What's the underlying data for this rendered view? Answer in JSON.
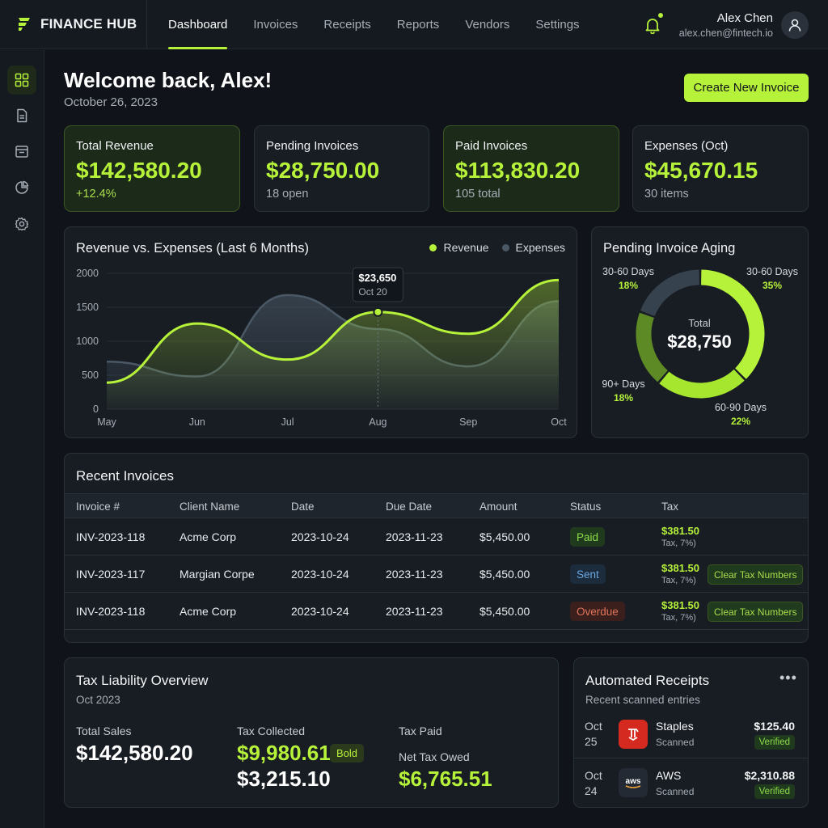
{
  "brand": {
    "name": "FINANCE HUB"
  },
  "nav": {
    "items": [
      "Dashboard",
      "Invoices",
      "Receipts",
      "Reports",
      "Vendors",
      "Settings"
    ],
    "active": "Dashboard"
  },
  "user": {
    "name": "Alex Chen",
    "email": "alex.chen@fintech.io"
  },
  "header": {
    "welcome": "Welcome back, Alex!",
    "date": "October 26, 2023",
    "create_button": "Create New Invoice"
  },
  "stats": [
    {
      "label": "Total Revenue",
      "value": "$142,580.20",
      "sub": "+12.4%"
    },
    {
      "label": "Pending Invoices",
      "value": "$28,750.00",
      "sub": "18 open"
    },
    {
      "label": "Paid Invoices",
      "value": "$113,830.20",
      "sub": "105 total"
    },
    {
      "label": "Expenses (Oct)",
      "value": "$45,670.15",
      "sub": "30 items"
    }
  ],
  "chart_data": [
    {
      "type": "area",
      "title": "Revenue vs. Expenses (Last 6 Months)",
      "categories": [
        "May",
        "Jun",
        "Jul",
        "Aug",
        "Sep",
        "Oct"
      ],
      "ylim": [
        0,
        2000
      ],
      "yticks": [
        "2000",
        "1500",
        "1000",
        "500",
        "0"
      ],
      "series": [
        {
          "name": "Revenue",
          "values": [
            390,
            1260,
            730,
            1430,
            1110,
            1900
          ]
        },
        {
          "name": "Expenses",
          "values": [
            700,
            480,
            1680,
            1180,
            630,
            1590
          ]
        }
      ],
      "tooltip": {
        "value": "$23,650",
        "date": "Oct 20"
      },
      "legend": "top-right",
      "colors": {
        "Revenue": "#b7f23a",
        "Expenses": "#4a5866"
      }
    },
    {
      "type": "pie",
      "title": "Pending Invoice Aging",
      "center_label": "Total",
      "center_value": "$28,750",
      "slices": [
        {
          "label": "30-60 Days",
          "value": 35
        },
        {
          "label": "60-90 Days",
          "value": 22
        },
        {
          "label": "90+ Days",
          "value": 18
        },
        {
          "label": "30-60 Days",
          "value": 18
        }
      ],
      "colors": [
        "#b7f23a",
        "#a6e62e",
        "#5d8a24",
        "#36424d"
      ]
    }
  ],
  "invoices": {
    "title": "Recent Invoices",
    "columns": [
      "Invoice #",
      "Client Name",
      "Date",
      "Due Date",
      "Amount",
      "Status",
      "Tax"
    ],
    "rows": [
      {
        "invoice": "INV-2023-118",
        "client": "Acme Corp",
        "date": "2023-10-24",
        "due": "2023-11-23",
        "amount": "$5,450.00",
        "status": "Paid",
        "tax": "$381.50",
        "tax_note": "Tax, 7%)",
        "action": ""
      },
      {
        "invoice": "INV-2023-117",
        "client": "Margian Corpe",
        "date": "2023-10-24",
        "due": "2023-11-23",
        "amount": "$5,450.00",
        "status": "Sent",
        "tax": "$381.50",
        "tax_note": "Tax, 7%)",
        "action": "Clear Tax Numbers"
      },
      {
        "invoice": "INV-2023-118",
        "client": "Acme Corp",
        "date": "2023-10-24",
        "due": "2023-11-23",
        "amount": "$5,450.00",
        "status": "Overdue",
        "tax": "$381.50",
        "tax_note": "Tax, 7%)",
        "action": "Clear Tax Numbers"
      }
    ]
  },
  "tax": {
    "title": "Tax Liability Overview",
    "period": "Oct 2023",
    "total_sales_label": "Total Sales",
    "total_sales": "$142,580.20",
    "collected_label": "Tax Collected",
    "collected": "$9,980.61",
    "badge": "Bold",
    "second_value": "$3,215.10",
    "paid_label": "Tax Paid",
    "net_label": "Net Tax Owed",
    "net": "$6,765.51"
  },
  "receipts": {
    "title": "Automated Receipts",
    "subtitle": "Recent scanned entries",
    "more": "•••",
    "items": [
      {
        "month": "Oct",
        "day": "25",
        "vendor": "Staples",
        "state": "Scanned",
        "amount": "$125.40",
        "badge": "Verified",
        "logo": "staples-logo"
      },
      {
        "month": "Oct",
        "day": "24",
        "vendor": "AWS",
        "state": "Scanned",
        "amount": "$2,310.88",
        "badge": "Verified",
        "logo": "aws-logo"
      }
    ]
  },
  "colors": {
    "accent": "#b7f23a",
    "background": "#10141a",
    "panel": "#181d24"
  }
}
